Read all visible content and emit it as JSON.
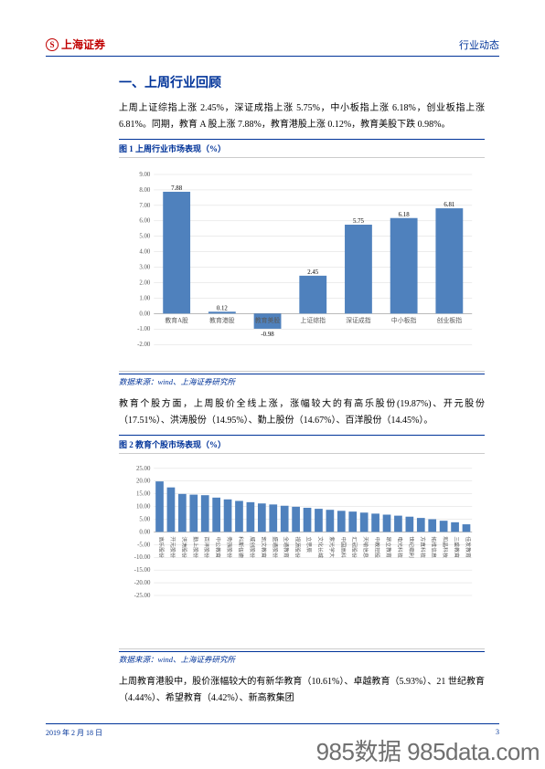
{
  "header": {
    "logo_text": "上海证券",
    "right_text": "行业动态"
  },
  "section_title": "一、上周行业回顾",
  "para1": "上周上证综指上涨 2.45%，深证成指上涨 5.75%，中小板指上涨 6.18%，创业板指上涨 6.81%。同期，教育 A 股上涨 7.88%，教育港股上涨 0.12%，教育美股下跌 0.98%。",
  "fig1_title": "图 1 上周行业市场表现（%）",
  "chart1": {
    "type": "bar",
    "categories": [
      "教育A股",
      "教育港股",
      "教育美股",
      "上证综指",
      "深证成指",
      "中小板指",
      "创业板指"
    ],
    "values": [
      7.88,
      0.12,
      -0.98,
      2.45,
      5.75,
      6.18,
      6.81
    ],
    "bar_color": "#4f81bd",
    "grid_color": "#d9d9d9",
    "axis_color": "#808080",
    "ylim": [
      -2,
      9
    ],
    "ytick_step": 1,
    "background": "#ffffff"
  },
  "source1": "数据来源：wind、上海证券研究所",
  "para2": "教育个股方面，上周股价全线上涨，涨幅较大的有高乐股份(19.87%)、开元股份（17.51%）、洪涛股份（14.95%）、勤上股份（14.67%）、百洋股份（14.45%）。",
  "fig2_title": "图 2 教育个股市场表现（%）",
  "chart2": {
    "type": "bar",
    "categories": [
      "高乐股份",
      "开元股份",
      "洪涛股份",
      "勤上股份",
      "百洋股份",
      "中公教育",
      "秀强股份",
      "科斯伍德",
      "威创股份",
      "凯文教育",
      "盛通股份",
      "全通教育",
      "视源股份",
      "立思辰",
      "文化长城",
      "紫光学大",
      "中国高科",
      "汇冠股份",
      "天喻信息",
      "中教控股",
      "昂立教育",
      "电光科技",
      "世纪鼎利",
      "方直科技",
      "拓维信息",
      "和晶科技",
      "三盛教育",
      "佳发教育"
    ],
    "values": [
      19.87,
      17.51,
      14.95,
      14.67,
      14.45,
      13.5,
      12.8,
      12.2,
      11.7,
      11.2,
      10.8,
      10.3,
      9.9,
      9.5,
      9.1,
      8.7,
      8.3,
      8.0,
      7.6,
      7.2,
      6.8,
      6.4,
      6.0,
      5.5,
      5.0,
      4.4,
      3.8,
      3.0
    ],
    "bar_color": "#4f81bd",
    "grid_color": "#d9d9d9",
    "axis_color": "#808080",
    "ylim": [
      -25,
      25
    ],
    "ytick_step": 5,
    "background": "#ffffff"
  },
  "source2": "数据来源：wind、上海证券研究所",
  "para3": "上周教育港股中，股价涨幅较大的有新华教育（10.61%）、卓越教育（5.93%）、21 世纪教育（4.44%）、希望教育（4.42%）、新高教集团",
  "footer": {
    "date": "2019 年 2 月 18 日",
    "page": "3"
  },
  "watermark": "985数据 985data.com"
}
